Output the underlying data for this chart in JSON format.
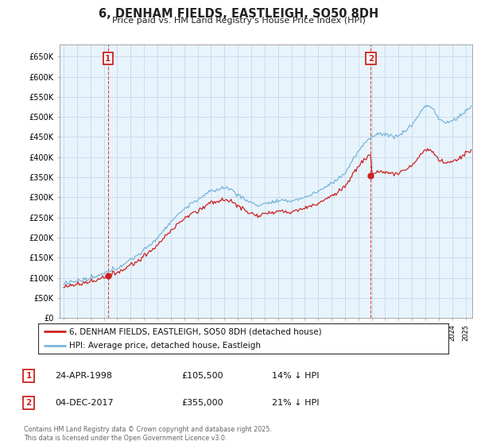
{
  "title": "6, DENHAM FIELDS, EASTLEIGH, SO50 8DH",
  "subtitle": "Price paid vs. HM Land Registry's House Price Index (HPI)",
  "ylabel_ticks": [
    "£0",
    "£50K",
    "£100K",
    "£150K",
    "£200K",
    "£250K",
    "£300K",
    "£350K",
    "£400K",
    "£450K",
    "£500K",
    "£550K",
    "£600K",
    "£650K"
  ],
  "ytick_values": [
    0,
    50000,
    100000,
    150000,
    200000,
    250000,
    300000,
    350000,
    400000,
    450000,
    500000,
    550000,
    600000,
    650000
  ],
  "ylim": [
    0,
    680000
  ],
  "xlim_start": 1994.7,
  "xlim_end": 2025.5,
  "sale1_date": 1998.31,
  "sale1_price": 105500,
  "sale1_label": "1",
  "sale2_date": 2017.92,
  "sale2_price": 355000,
  "sale2_label": "2",
  "hpi_color": "#7ab5d8",
  "price_color": "#cc2222",
  "annotation_color": "#cc2222",
  "chart_bg_color": "#e8f4fc",
  "legend_label1": "6, DENHAM FIELDS, EASTLEIGH, SO50 8DH (detached house)",
  "legend_label2": "HPI: Average price, detached house, Eastleigh",
  "table_row1": [
    "1",
    "24-APR-1998",
    "£105,500",
    "14% ↓ HPI"
  ],
  "table_row2": [
    "2",
    "04-DEC-2017",
    "£355,000",
    "21% ↓ HPI"
  ],
  "footnote": "Contains HM Land Registry data © Crown copyright and database right 2025.\nThis data is licensed under the Open Government Licence v3.0.",
  "background_color": "#ffffff",
  "grid_color": "#c8d8e8"
}
